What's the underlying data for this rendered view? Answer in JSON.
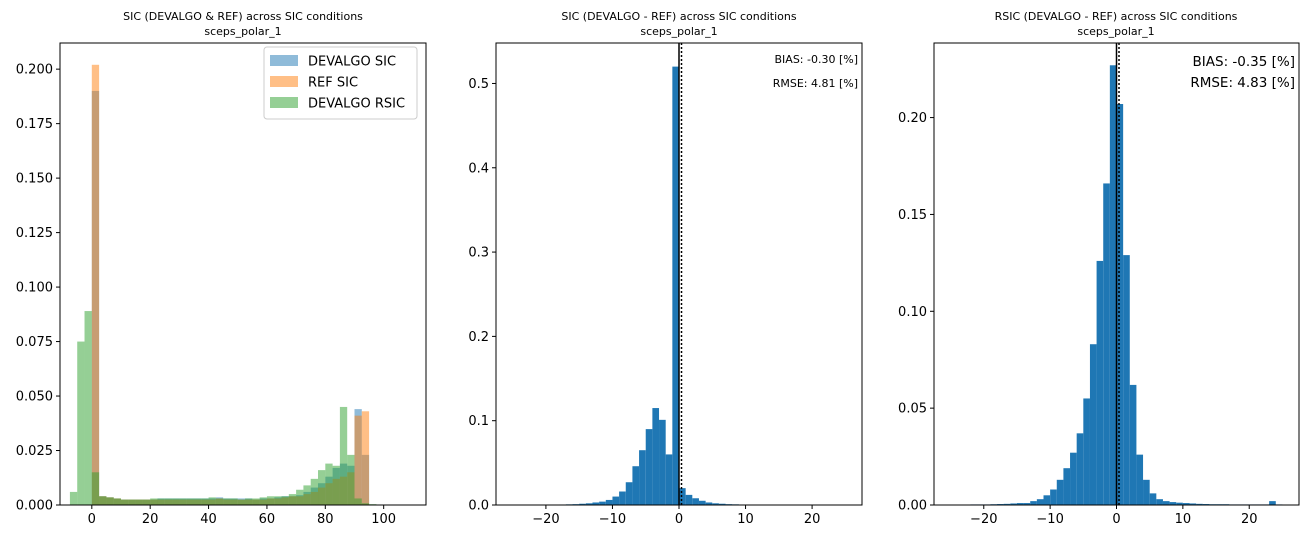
{
  "colors": {
    "blue": "#1f77b4",
    "orange": "#ff7f0e",
    "green": "#2ca02c",
    "frame": "#000000",
    "legend_border": "#cccccc"
  },
  "chart_data": [
    {
      "type": "bar",
      "title": "SIC (DEVALGO & REF) across SIC conditions",
      "subtitle": "sceps_polar_1",
      "xlabel": "",
      "ylabel": "",
      "xlim": [
        -10.9,
        114.5
      ],
      "ylim": [
        0,
        0.212
      ],
      "xticks": [
        0,
        20,
        40,
        60,
        80,
        100
      ],
      "xtick_labels": [
        "0",
        "20",
        "40",
        "60",
        "80",
        "100"
      ],
      "yticks": [
        0,
        0.025,
        0.05,
        0.075,
        0.1,
        0.125,
        0.15,
        0.175,
        0.2
      ],
      "ytick_labels": [
        "0.000",
        "0.025",
        "0.050",
        "0.075",
        "0.100",
        "0.125",
        "0.150",
        "0.175",
        "0.200"
      ],
      "bin_width": 2.5,
      "bar_alpha": 0.5,
      "legend_position": "top-right",
      "legend": [
        "DEVALGO SIC",
        "REF SIC",
        "DEVALGO RSIC"
      ],
      "series": [
        {
          "name": "DEVALGO SIC",
          "color": "#1f77b4",
          "bin_start": 0,
          "values": [
            0.19,
            0.004,
            0.0035,
            0.003,
            0.0025,
            0.0025,
            0.0025,
            0.0025,
            0.0025,
            0.003,
            0.003,
            0.003,
            0.003,
            0.003,
            0.003,
            0.003,
            0.003,
            0.0035,
            0.003,
            0.003,
            0.003,
            0.003,
            0.0025,
            0.003,
            0.003,
            0.0035,
            0.004,
            0.004,
            0.0045,
            0.006,
            0.008,
            0.01,
            0.013,
            0.017,
            0.019,
            0.018,
            0.044,
            0.023
          ]
        },
        {
          "name": "REF SIC",
          "color": "#ff7f0e",
          "bin_start": 0,
          "values": [
            0.202,
            0.004,
            0.0035,
            0.003,
            0.0025,
            0.0025,
            0.0025,
            0.0025,
            0.0025,
            0.0025,
            0.0025,
            0.0025,
            0.0025,
            0.0025,
            0.0025,
            0.0025,
            0.0025,
            0.003,
            0.0025,
            0.0025,
            0.0025,
            0.0025,
            0.0025,
            0.0025,
            0.003,
            0.003,
            0.0035,
            0.004,
            0.004,
            0.005,
            0.006,
            0.008,
            0.01,
            0.012,
            0.013,
            0.015,
            0.041,
            0.043
          ]
        },
        {
          "name": "DEVALGO RSIC",
          "color": "#2ca02c",
          "bin_start": -7.5,
          "values": [
            0.006,
            0.075,
            0.089,
            0.015,
            0.004,
            0.0035,
            0.003,
            0.0025,
            0.0025,
            0.0025,
            0.0025,
            0.003,
            0.003,
            0.003,
            0.003,
            0.003,
            0.003,
            0.003,
            0.003,
            0.0035,
            0.003,
            0.003,
            0.003,
            0.0025,
            0.003,
            0.003,
            0.0035,
            0.004,
            0.004,
            0.004,
            0.005,
            0.007,
            0.009,
            0.012,
            0.016,
            0.019,
            0.018,
            0.045,
            0.023,
            0.003,
            0.0008,
            0.0004,
            0.0001,
            0.0001,
            5e-05,
            3e-05,
            2e-05,
            1e-05
          ]
        }
      ]
    },
    {
      "type": "bar",
      "title": "SIC (DEVALGO - REF) across SIC conditions",
      "subtitle": "sceps_polar_1",
      "xlabel": "",
      "ylabel": "",
      "xlim": [
        -27.5,
        27.5
      ],
      "ylim": [
        0,
        0.548
      ],
      "xticks": [
        -20,
        -10,
        0,
        10,
        20
      ],
      "xtick_labels": [
        "−20",
        "−10",
        "0",
        "10",
        "20"
      ],
      "yticks": [
        0,
        0.1,
        0.2,
        0.3,
        0.4,
        0.5
      ],
      "ytick_labels": [
        "0.0",
        "0.1",
        "0.2",
        "0.3",
        "0.4",
        "0.5"
      ],
      "bin_width": 1,
      "bin_start": -25,
      "bar_alpha": 1,
      "color": "#1f77b4",
      "values": [
        0.0002,
        0.0002,
        0.0002,
        0.0003,
        0.0003,
        0.0004,
        0.0005,
        0.0006,
        0.0008,
        0.001,
        0.0015,
        0.002,
        0.003,
        0.004,
        0.006,
        0.01,
        0.016,
        0.027,
        0.046,
        0.065,
        0.09,
        0.115,
        0.101,
        0.06,
        0.52,
        0.02,
        0.012,
        0.008,
        0.005,
        0.003,
        0.002,
        0.0015,
        0.001,
        0.0008,
        0.0006,
        0.0005,
        0.0004,
        0.0003,
        0.0003,
        0.0002,
        0.0002,
        0.0002,
        0.0001,
        0.0001,
        0.0001,
        0.0001,
        0.0001,
        0.0001,
        0.0001,
        0.0001
      ],
      "vline_x": 0,
      "annotations": [
        "BIAS: -0.30 [%]",
        "RMSE: 4.81 [%]"
      ]
    },
    {
      "type": "bar",
      "title": "RSIC (DEVALGO - REF) across SIC conditions",
      "subtitle": "sceps_polar_1",
      "xlabel": "",
      "ylabel": "",
      "xlim": [
        -27.5,
        27.5
      ],
      "ylim": [
        0,
        0.2385
      ],
      "xticks": [
        -20,
        -10,
        0,
        10,
        20
      ],
      "xtick_labels": [
        "−20",
        "−10",
        "0",
        "10",
        "20"
      ],
      "yticks": [
        0,
        0.05,
        0.1,
        0.15,
        0.2
      ],
      "ytick_labels": [
        "0.00",
        "0.05",
        "0.10",
        "0.15",
        "0.20"
      ],
      "bin_width": 1,
      "bin_start": -25,
      "bar_alpha": 1,
      "color": "#1f77b4",
      "values": [
        0.0002,
        0.0002,
        0.0002,
        0.0003,
        0.0003,
        0.0003,
        0.0004,
        0.0005,
        0.0006,
        0.0008,
        0.001,
        0.001,
        0.002,
        0.003,
        0.005,
        0.008,
        0.013,
        0.019,
        0.027,
        0.037,
        0.055,
        0.083,
        0.126,
        0.166,
        0.227,
        0.207,
        0.129,
        0.062,
        0.026,
        0.013,
        0.006,
        0.003,
        0.002,
        0.0015,
        0.0012,
        0.001,
        0.0008,
        0.0006,
        0.0005,
        0.0004,
        0.0004,
        0.0004,
        0.0003,
        0.0003,
        0.0003,
        0.0003,
        0.0003,
        0.0003,
        0.002,
        0.0003
      ],
      "vline_x": 0,
      "annotations": [
        "BIAS: -0.35 [%]",
        "RMSE: 4.83 [%]"
      ]
    }
  ]
}
